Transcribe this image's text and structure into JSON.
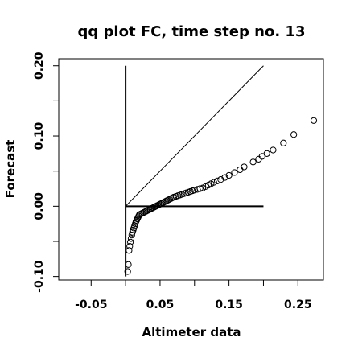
{
  "chart_data": {
    "type": "scatter",
    "title": "qq plot FC, time step no. 13",
    "xlabel": "Altimeter data",
    "ylabel": "Forecast",
    "xlim": [
      -0.097,
      0.287
    ],
    "ylim": [
      -0.105,
      0.21
    ],
    "xticks": [
      -0.05,
      0.05,
      0.15,
      0.25
    ],
    "xtick_labels": [
      "-0.05",
      "0.05",
      "0.15",
      "0.25"
    ],
    "yticks": [
      -0.1,
      0.0,
      0.1,
      0.2
    ],
    "ytick_labels": [
      "-0.10",
      "0.00",
      "0.10",
      "0.20"
    ],
    "grid": false,
    "reference_lines": [
      {
        "name": "identity",
        "x": [
          0.0,
          0.2
        ],
        "y": [
          0.0,
          0.2
        ]
      },
      {
        "name": "zero-horizontal",
        "x": [
          0.0,
          0.2
        ],
        "y": [
          0.0,
          0.0
        ]
      },
      {
        "name": "zero-vertical",
        "x": [
          0.0,
          0.0
        ],
        "y": [
          -0.1,
          0.2
        ]
      }
    ],
    "series": [
      {
        "marker": "open-circle",
        "x": [
          0.003,
          0.004,
          0.005,
          0.006,
          0.007,
          0.008,
          0.009,
          0.01,
          0.011,
          0.012,
          0.013,
          0.014,
          0.015,
          0.016,
          0.017,
          0.018,
          0.019,
          0.02,
          0.022,
          0.024,
          0.026,
          0.028,
          0.03,
          0.032,
          0.034,
          0.036,
          0.038,
          0.04,
          0.042,
          0.044,
          0.046,
          0.048,
          0.05,
          0.052,
          0.054,
          0.056,
          0.058,
          0.06,
          0.062,
          0.064,
          0.066,
          0.068,
          0.07,
          0.073,
          0.076,
          0.079,
          0.082,
          0.085,
          0.088,
          0.091,
          0.094,
          0.097,
          0.1,
          0.104,
          0.108,
          0.112,
          0.116,
          0.12,
          0.124,
          0.128,
          0.133,
          0.138,
          0.144,
          0.15,
          0.158,
          0.166,
          0.172,
          0.185,
          0.193,
          0.198,
          0.205,
          0.214,
          0.229,
          0.244,
          0.273
        ],
        "y": [
          -0.093,
          -0.083,
          -0.063,
          -0.057,
          -0.051,
          -0.046,
          -0.041,
          -0.037,
          -0.034,
          -0.031,
          -0.028,
          -0.025,
          -0.022,
          -0.02,
          -0.018,
          -0.016,
          -0.014,
          -0.012,
          -0.011,
          -0.01,
          -0.009,
          -0.008,
          -0.007,
          -0.006,
          -0.005,
          -0.004,
          -0.003,
          -0.002,
          -0.001,
          0.0,
          0.001,
          0.002,
          0.003,
          0.004,
          0.005,
          0.006,
          0.007,
          0.008,
          0.009,
          0.01,
          0.011,
          0.012,
          0.013,
          0.014,
          0.015,
          0.016,
          0.017,
          0.018,
          0.019,
          0.02,
          0.021,
          0.022,
          0.023,
          0.024,
          0.025,
          0.026,
          0.028,
          0.03,
          0.032,
          0.034,
          0.036,
          0.038,
          0.041,
          0.044,
          0.048,
          0.052,
          0.056,
          0.063,
          0.067,
          0.071,
          0.075,
          0.08,
          0.09,
          0.102,
          0.122
        ]
      }
    ]
  }
}
